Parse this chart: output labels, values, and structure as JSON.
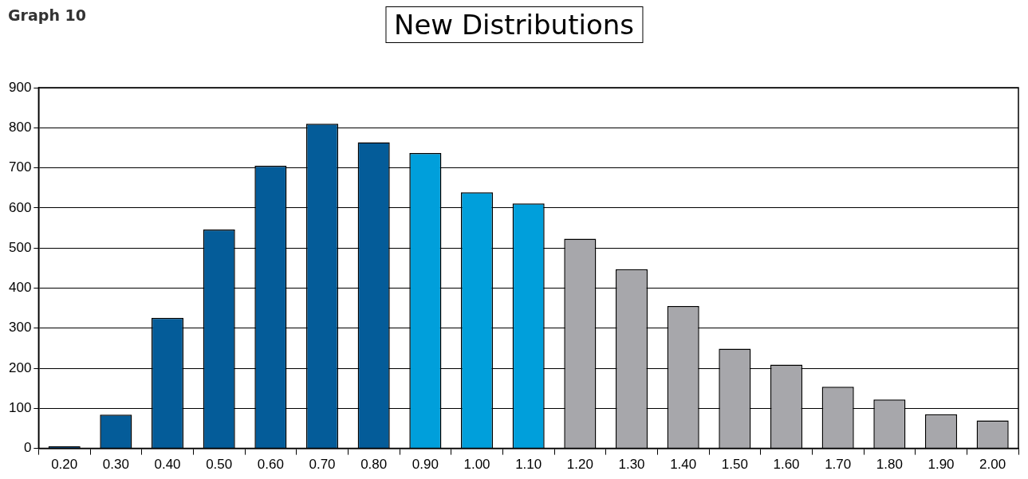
{
  "chart_data": {
    "type": "bar",
    "title": "New Distributions",
    "annotations": [
      "Graph 10"
    ],
    "categories": [
      "0.20",
      "0.30",
      "0.40",
      "0.50",
      "0.60",
      "0.70",
      "0.80",
      "0.90",
      "1.00",
      "1.10",
      "1.20",
      "1.30",
      "1.40",
      "1.50",
      "1.60",
      "1.70",
      "1.80",
      "1.90",
      "2.00"
    ],
    "values": [
      5,
      84,
      326,
      546,
      705,
      810,
      764,
      737,
      639,
      611,
      523,
      447,
      355,
      249,
      209,
      154,
      122,
      85,
      70
    ],
    "colors": [
      "#045c99",
      "#045c99",
      "#045c99",
      "#045c99",
      "#045c99",
      "#045c99",
      "#045c99",
      "#009fdb",
      "#009fdb",
      "#009fdb",
      "#a7a7ab",
      "#a7a7ab",
      "#a7a7ab",
      "#a7a7ab",
      "#a7a7ab",
      "#a7a7ab",
      "#a7a7ab",
      "#a7a7ab",
      "#a7a7ab"
    ],
    "ylim": [
      0,
      900
    ],
    "yticks": [
      0,
      100,
      200,
      300,
      400,
      500,
      600,
      700,
      800,
      900
    ],
    "grid": "y",
    "legend": false
  }
}
